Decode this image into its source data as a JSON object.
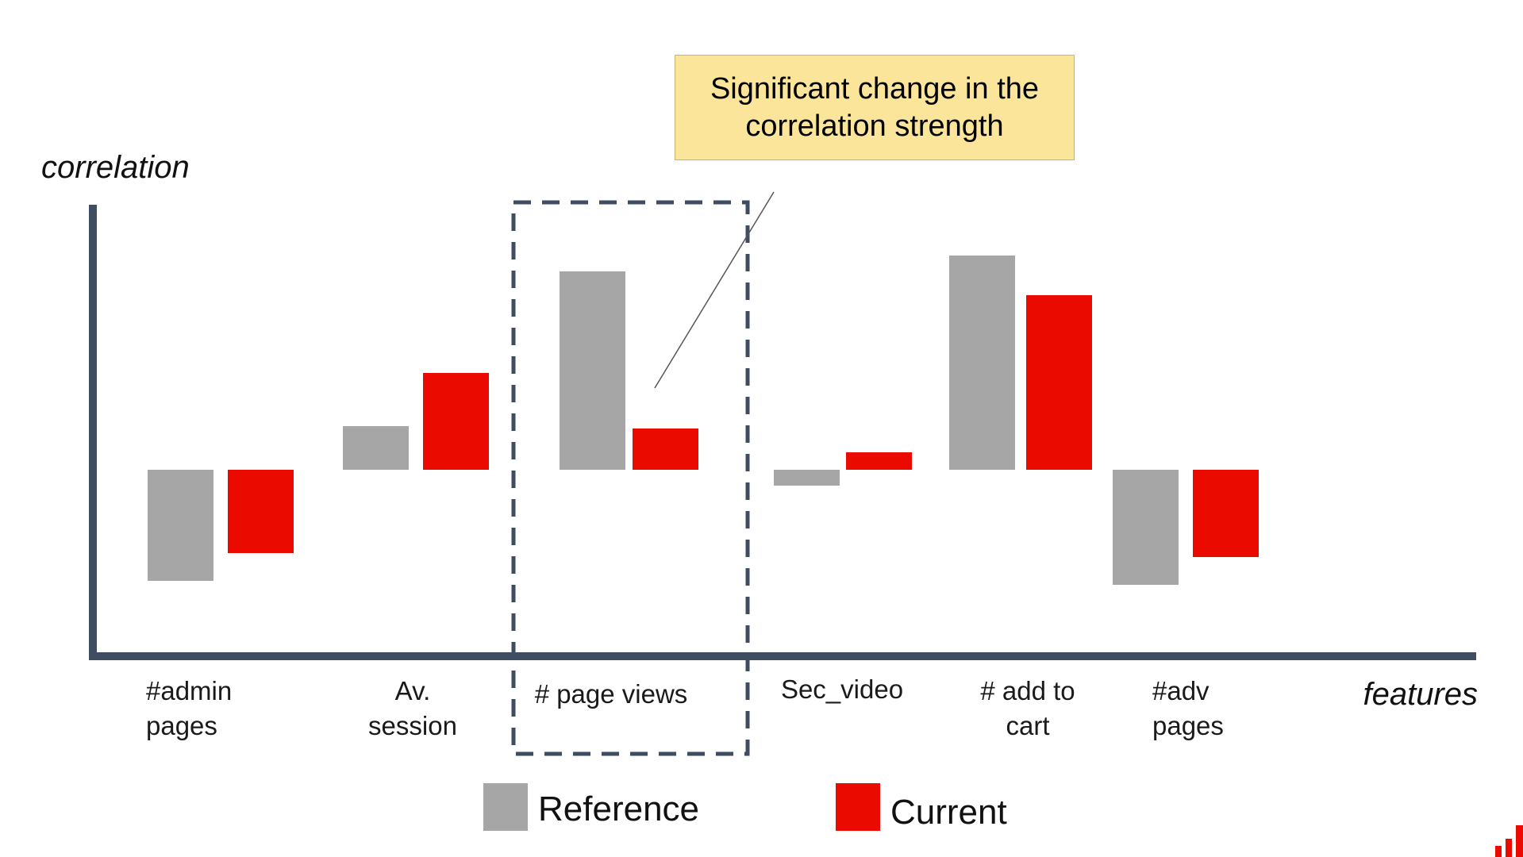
{
  "chart_data": {
    "type": "bar",
    "title": "",
    "xlabel": "features",
    "ylabel": "correlation",
    "categories": [
      [
        "#admin",
        "pages"
      ],
      [
        "Av.",
        "session"
      ],
      [
        "# page views"
      ],
      [
        "Sec_video"
      ],
      [
        "# add to",
        "cart"
      ],
      [
        "#adv",
        "pages"
      ]
    ],
    "series": [
      {
        "name": "Reference",
        "color": "#a6a6a6",
        "values": [
          -1.4,
          0.55,
          2.5,
          -0.2,
          2.7,
          -1.45
        ]
      },
      {
        "name": "Current",
        "color": "#ea0a00",
        "values": [
          -1.05,
          1.22,
          0.52,
          0.22,
          2.2,
          -1.1
        ]
      }
    ],
    "ylim": [
      -2.35,
      3.35
    ],
    "highlight_category": 2,
    "annotation": {
      "text": "Significant change in the correlation strength"
    },
    "legend_position": "bottom-center",
    "grid": false
  },
  "colors": {
    "axis": "#3f4d63",
    "highlight_box": "#3f4d63",
    "callout_fill": "#fbe59a",
    "logo": "#ea0a00"
  },
  "icons": {
    "logo": "bar-chart-logo-icon"
  }
}
